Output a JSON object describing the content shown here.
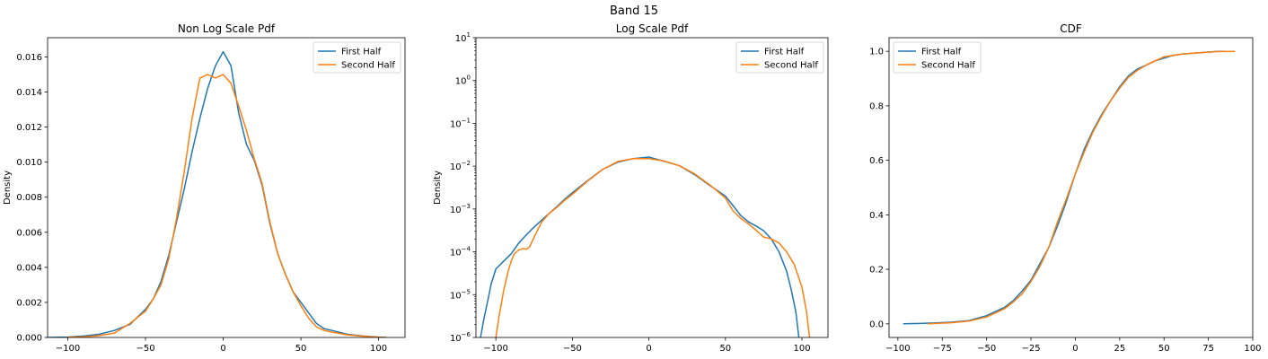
{
  "figure": {
    "title": "Band 15"
  },
  "colors": {
    "first_half": "#1f77b4",
    "second_half": "#ff7f0e"
  },
  "chart_data": [
    {
      "type": "line",
      "title": "Non Log Scale Pdf",
      "xlabel": "",
      "ylabel": "Density",
      "yscale": "linear",
      "xlim": [
        -113,
        117
      ],
      "ylim": [
        0,
        0.0171
      ],
      "xticks": [
        -100,
        -50,
        0,
        50,
        100
      ],
      "xtick_labels": [
        "−100",
        "−50",
        "0",
        "50",
        "100"
      ],
      "yticks": [
        0,
        0.002,
        0.004,
        0.006,
        0.008,
        0.01,
        0.012,
        0.014,
        0.016
      ],
      "ytick_labels": [
        "0.000",
        "0.002",
        "0.004",
        "0.006",
        "0.008",
        "0.010",
        "0.012",
        "0.014",
        "0.016"
      ],
      "legend": {
        "position": "top-right",
        "entries": [
          "First Half",
          "Second Half"
        ]
      },
      "series": [
        {
          "name": "First Half",
          "x": [
            -113,
            -100,
            -90,
            -80,
            -70,
            -60,
            -50,
            -45,
            -40,
            -35,
            -30,
            -25,
            -20,
            -15,
            -10,
            -5,
            0,
            5,
            10,
            15,
            20,
            25,
            30,
            35,
            40,
            45,
            50,
            55,
            60,
            65,
            70,
            80,
            90,
            100,
            105
          ],
          "y": [
            0,
            2e-05,
            8e-05,
            0.00018,
            0.0004,
            0.00075,
            0.0016,
            0.0022,
            0.0032,
            0.0047,
            0.0066,
            0.0085,
            0.0106,
            0.0125,
            0.0142,
            0.0155,
            0.0163,
            0.0155,
            0.0128,
            0.011,
            0.0101,
            0.0087,
            0.0065,
            0.0048,
            0.0036,
            0.0026,
            0.002,
            0.0014,
            0.0008,
            0.0005,
            0.0004,
            0.00018,
            8e-05,
            2e-05,
            0
          ]
        },
        {
          "name": "Second Half",
          "x": [
            -100,
            -90,
            -80,
            -70,
            -60,
            -50,
            -45,
            -40,
            -35,
            -30,
            -25,
            -20,
            -15,
            -10,
            -5,
            0,
            5,
            10,
            15,
            20,
            25,
            30,
            35,
            40,
            45,
            50,
            55,
            60,
            65,
            70,
            80,
            90,
            100,
            105
          ],
          "y": [
            1e-05,
            4e-05,
            0.0001,
            0.00025,
            0.0008,
            0.0015,
            0.0022,
            0.003,
            0.0045,
            0.0068,
            0.0095,
            0.0125,
            0.0148,
            0.015,
            0.0148,
            0.015,
            0.0145,
            0.0132,
            0.0118,
            0.0102,
            0.0088,
            0.0066,
            0.0048,
            0.0036,
            0.0026,
            0.0018,
            0.0011,
            0.0006,
            0.0004,
            0.0003,
            0.00015,
            7e-05,
            1e-05,
            0
          ]
        }
      ]
    },
    {
      "type": "line",
      "title": "Log Scale Pdf",
      "xlabel": "",
      "ylabel": "Density",
      "yscale": "log",
      "xlim": [
        -113,
        117
      ],
      "ylim": [
        1e-06,
        10
      ],
      "xticks": [
        -100,
        -50,
        0,
        50,
        100
      ],
      "xtick_labels": [
        "−100",
        "−50",
        "0",
        "50",
        "100"
      ],
      "yticks": [
        1e-06,
        1e-05,
        0.0001,
        0.001,
        0.01,
        0.1,
        1,
        10
      ],
      "ytick_labels": [
        {
          "base": "10",
          "exp": "−6"
        },
        {
          "base": "10",
          "exp": "−5"
        },
        {
          "base": "10",
          "exp": "−4"
        },
        {
          "base": "10",
          "exp": "−3"
        },
        {
          "base": "10",
          "exp": "−2"
        },
        {
          "base": "10",
          "exp": "−1"
        },
        {
          "base": "10",
          "exp": "0"
        },
        {
          "base": "10",
          "exp": "1"
        }
      ],
      "legend": {
        "position": "top-right",
        "entries": [
          "First Half",
          "Second Half"
        ]
      },
      "series": [
        {
          "name": "First Half",
          "x": [
            -110,
            -108,
            -105,
            -103,
            -100,
            -95,
            -90,
            -85,
            -80,
            -75,
            -70,
            -65,
            -60,
            -55,
            -50,
            -40,
            -30,
            -20,
            -10,
            0,
            10,
            20,
            30,
            40,
            50,
            55,
            60,
            65,
            70,
            75,
            80,
            85,
            90,
            93,
            96,
            98
          ],
          "y": [
            1e-06,
            2.5e-06,
            8e-06,
            1.8e-05,
            4e-05,
            6e-05,
            9e-05,
            0.00016,
            0.00025,
            0.00038,
            0.00055,
            0.0008,
            0.00115,
            0.0017,
            0.0024,
            0.0046,
            0.0085,
            0.0125,
            0.015,
            0.0163,
            0.013,
            0.0102,
            0.0063,
            0.0035,
            0.002,
            0.0012,
            0.0007,
            0.0005,
            0.0004,
            0.00031,
            0.0002,
            0.0001,
            3.5e-05,
            1.3e-05,
            4e-06,
            1e-06
          ]
        },
        {
          "name": "Second Half",
          "x": [
            -100,
            -98,
            -95,
            -92,
            -90,
            -88,
            -85,
            -82,
            -80,
            -78,
            -75,
            -70,
            -65,
            -60,
            -55,
            -50,
            -40,
            -30,
            -20,
            -10,
            0,
            10,
            20,
            30,
            40,
            50,
            55,
            60,
            65,
            70,
            75,
            80,
            85,
            90,
            95,
            100,
            103,
            105
          ],
          "y": [
            1e-06,
            3e-06,
            1.2e-05,
            3.5e-05,
            6e-05,
            9e-05,
            0.00011,
            0.00012,
            0.000115,
            0.00013,
            0.00022,
            0.0005,
            0.0008,
            0.0011,
            0.0016,
            0.0022,
            0.0045,
            0.0085,
            0.013,
            0.015,
            0.015,
            0.0132,
            0.0102,
            0.0066,
            0.0036,
            0.0018,
            0.0009,
            0.0006,
            0.00045,
            0.00032,
            0.00022,
            0.0002,
            0.00016,
            0.0001,
            5e-05,
            1.5e-05,
            4e-06,
            1e-06
          ]
        }
      ]
    },
    {
      "type": "line",
      "title": "CDF",
      "xlabel": "",
      "ylabel": "",
      "yscale": "linear",
      "xlim": [
        -105,
        100
      ],
      "ylim": [
        -0.05,
        1.05
      ],
      "xticks": [
        -100,
        -75,
        -50,
        -25,
        0,
        25,
        50,
        75,
        100
      ],
      "xtick_labels": [
        "−100",
        "−75",
        "−50",
        "−25",
        "0",
        "25",
        "50",
        "75",
        "100"
      ],
      "yticks": [
        0,
        0.2,
        0.4,
        0.6,
        0.8,
        1.0
      ],
      "ytick_labels": [
        "0.0",
        "0.2",
        "0.4",
        "0.6",
        "0.8",
        "1.0"
      ],
      "legend": {
        "position": "top-left",
        "entries": [
          "First Half",
          "Second Half"
        ]
      },
      "series": [
        {
          "name": "First Half",
          "x": [
            -97,
            -90,
            -80,
            -70,
            -60,
            -50,
            -45,
            -40,
            -35,
            -30,
            -25,
            -20,
            -15,
            -10,
            -5,
            0,
            5,
            10,
            15,
            20,
            25,
            30,
            35,
            40,
            45,
            50,
            55,
            60,
            70,
            80,
            85
          ],
          "y": [
            0.0,
            0.001,
            0.003,
            0.006,
            0.012,
            0.03,
            0.045,
            0.06,
            0.085,
            0.12,
            0.16,
            0.22,
            0.28,
            0.36,
            0.45,
            0.55,
            0.64,
            0.71,
            0.77,
            0.82,
            0.87,
            0.91,
            0.935,
            0.95,
            0.965,
            0.975,
            0.985,
            0.99,
            0.995,
            1.0,
            1.0
          ]
        },
        {
          "name": "Second Half",
          "x": [
            -83,
            -80,
            -70,
            -60,
            -50,
            -45,
            -40,
            -35,
            -30,
            -25,
            -20,
            -15,
            -10,
            -5,
            0,
            5,
            10,
            15,
            20,
            25,
            30,
            35,
            40,
            45,
            50,
            55,
            60,
            70,
            80,
            90
          ],
          "y": [
            0.0,
            0.001,
            0.004,
            0.01,
            0.025,
            0.04,
            0.055,
            0.08,
            0.11,
            0.155,
            0.21,
            0.28,
            0.375,
            0.46,
            0.55,
            0.63,
            0.705,
            0.765,
            0.82,
            0.865,
            0.905,
            0.93,
            0.95,
            0.965,
            0.98,
            0.985,
            0.99,
            0.995,
            0.999,
            1.0
          ]
        }
      ]
    }
  ]
}
